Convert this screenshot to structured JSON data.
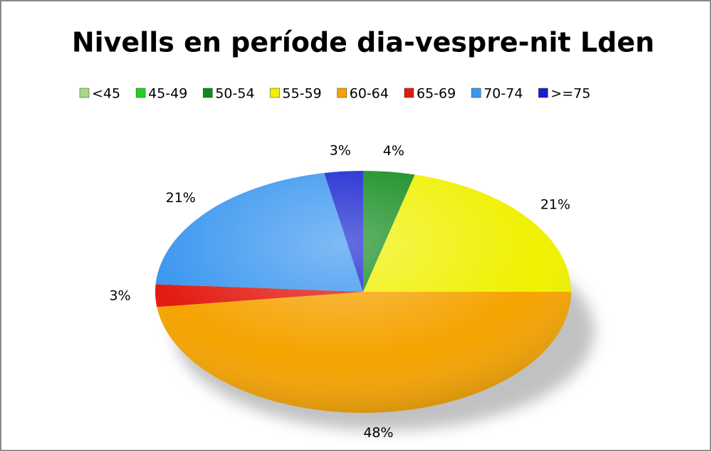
{
  "chart_data": {
    "type": "pie",
    "title": "Nivells en període dia-vespre-nit Lden",
    "categories": [
      "<45",
      "45-49",
      "50-54",
      "55-59",
      "60-64",
      "65-69",
      "70-74",
      ">=75"
    ],
    "values": [
      0,
      0,
      4,
      21,
      48,
      3,
      21,
      3
    ],
    "value_labels": [
      null,
      null,
      "4%",
      "21%",
      "48%",
      "3%",
      "21%",
      "3%"
    ],
    "colors": [
      "#a6d98a",
      "#22d022",
      "#0f8a1a",
      "#f0f000",
      "#f5a300",
      "#e21a10",
      "#3a96f0",
      "#1420d0"
    ],
    "legend": "top"
  }
}
